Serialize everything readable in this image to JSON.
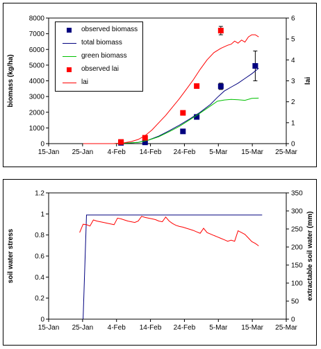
{
  "chart_data": [
    {
      "type": "scatter+line",
      "xlabel": "",
      "ylabel": "biomass (kg/ha)",
      "y2label": "lai",
      "x_ticks": [
        "15-Jan",
        "25-Jan",
        "4-Feb",
        "14-Feb",
        "24-Feb",
        "5-Mar",
        "15-Mar",
        "25-Mar"
      ],
      "xlim_days": [
        0,
        69
      ],
      "ylim": [
        0,
        8000
      ],
      "y_ticks": [
        "0",
        "1000",
        "2000",
        "3000",
        "4000",
        "5000",
        "6000",
        "7000",
        "8000"
      ],
      "y2lim": [
        0,
        6
      ],
      "y2_ticks": [
        "0",
        "1",
        "2",
        "3",
        "4",
        "5",
        "6"
      ],
      "legend": {
        "position": "top-left",
        "entries": [
          "observed biomass",
          "total biomass",
          "green biomass",
          "observed lai",
          "lai"
        ]
      },
      "series": [
        {
          "name": "observed biomass",
          "kind": "marker",
          "axis": "left",
          "color": "#00007f",
          "points": [
            {
              "x": 21,
              "y": 50
            },
            {
              "x": 28,
              "y": 80
            },
            {
              "x": 39,
              "y": 780
            },
            {
              "x": 43,
              "y": 1700
            },
            {
              "x": 50,
              "y": 3650,
              "err": 200
            },
            {
              "x": 60,
              "y": 4950,
              "err": 950
            }
          ]
        },
        {
          "name": "total biomass",
          "kind": "line",
          "axis": "left",
          "color": "#00007f",
          "points": [
            [
              10,
              0
            ],
            [
              19,
              0
            ],
            [
              23,
              40
            ],
            [
              26,
              80
            ],
            [
              29,
              230
            ],
            [
              32,
              480
            ],
            [
              35,
              820
            ],
            [
              38,
              1180
            ],
            [
              41,
              1580
            ],
            [
              44,
              2000
            ],
            [
              47,
              2500
            ],
            [
              49,
              2950
            ],
            [
              51,
              3350
            ],
            [
              53,
              3600
            ],
            [
              55,
              3850
            ],
            [
              57,
              4150
            ],
            [
              59,
              4450
            ],
            [
              61,
              4800
            ]
          ]
        },
        {
          "name": "green biomass",
          "kind": "line",
          "axis": "left",
          "color": "#00c000",
          "points": [
            [
              10,
              0
            ],
            [
              19,
              0
            ],
            [
              23,
              40
            ],
            [
              26,
              80
            ],
            [
              29,
              220
            ],
            [
              32,
              440
            ],
            [
              35,
              760
            ],
            [
              38,
              1100
            ],
            [
              41,
              1520
            ],
            [
              44,
              1950
            ],
            [
              47,
              2400
            ],
            [
              49,
              2700
            ],
            [
              51,
              2780
            ],
            [
              53,
              2820
            ],
            [
              55,
              2800
            ],
            [
              57,
              2760
            ],
            [
              59,
              2880
            ],
            [
              61,
              2900
            ]
          ]
        },
        {
          "name": "observed lai",
          "kind": "marker",
          "axis": "right",
          "color": "#ff0000",
          "points": [
            {
              "x": 21,
              "y": 0.08
            },
            {
              "x": 28,
              "y": 0.28
            },
            {
              "x": 39,
              "y": 1.47
            },
            {
              "x": 43,
              "y": 2.75
            },
            {
              "x": 50,
              "y": 5.4,
              "err": 0.2
            }
          ]
        },
        {
          "name": "lai",
          "kind": "line",
          "axis": "right",
          "color": "#ff0000",
          "points": [
            [
              10,
              0
            ],
            [
              19,
              0
            ],
            [
              22,
              0.04
            ],
            [
              24,
              0.1
            ],
            [
              26,
              0.2
            ],
            [
              28,
              0.38
            ],
            [
              30,
              0.65
            ],
            [
              32,
              1.0
            ],
            [
              34,
              1.35
            ],
            [
              36,
              1.75
            ],
            [
              38,
              2.15
            ],
            [
              40,
              2.6
            ],
            [
              42,
              3.05
            ],
            [
              44,
              3.55
            ],
            [
              46,
              4.0
            ],
            [
              48,
              4.35
            ],
            [
              50,
              4.55
            ],
            [
              52,
              4.7
            ],
            [
              53,
              4.75
            ],
            [
              54,
              4.9
            ],
            [
              55,
              4.8
            ],
            [
              56,
              4.95
            ],
            [
              57,
              4.85
            ],
            [
              58,
              5.1
            ],
            [
              59,
              5.2
            ],
            [
              60,
              5.2
            ],
            [
              61,
              5.1
            ]
          ]
        }
      ]
    },
    {
      "type": "line",
      "xlabel": "",
      "ylabel": "soil water stress",
      "y2label": "extractable soil water (mm)",
      "x_ticks": [
        "15-Jan",
        "25-Jan",
        "4-Feb",
        "14-Feb",
        "24-Feb",
        "5-Mar",
        "15-Mar",
        "25-Mar"
      ],
      "xlim_days": [
        0,
        69
      ],
      "ylim": [
        0,
        1.2
      ],
      "y_ticks": [
        "0",
        "0.2",
        "0.4",
        "0.6",
        "0.8",
        "1",
        "1.2"
      ],
      "y2lim": [
        0,
        350
      ],
      "y2_ticks": [
        "0",
        "50",
        "100",
        "150",
        "200",
        "250",
        "300",
        "350"
      ],
      "series": [
        {
          "name": "",
          "kind": "line",
          "axis": "left",
          "color": "#00007f",
          "points": [
            [
              10,
              0
            ],
            [
              11,
              0.99
            ],
            [
              12,
              0.99
            ],
            [
              62,
              0.99
            ]
          ]
        },
        {
          "name": "",
          "kind": "line",
          "axis": "right",
          "color": "#ff0000",
          "points": [
            [
              9,
              240
            ],
            [
              10,
              263
            ],
            [
              11,
              262
            ],
            [
              12,
              258
            ],
            [
              13,
              275
            ],
            [
              14,
              272
            ],
            [
              15,
              270
            ],
            [
              16,
              268
            ],
            [
              17,
              266
            ],
            [
              18,
              264
            ],
            [
              19,
              262
            ],
            [
              20,
              280
            ],
            [
              21,
              278
            ],
            [
              22,
              275
            ],
            [
              23,
              272
            ],
            [
              24,
              270
            ],
            [
              25,
              268
            ],
            [
              26,
              272
            ],
            [
              27,
              285
            ],
            [
              28,
              282
            ],
            [
              29,
              280
            ],
            [
              30,
              278
            ],
            [
              31,
              276
            ],
            [
              32,
              272
            ],
            [
              33,
              270
            ],
            [
              34,
              283
            ],
            [
              35,
              272
            ],
            [
              36,
              265
            ],
            [
              37,
              260
            ],
            [
              38,
              257
            ],
            [
              39,
              255
            ],
            [
              40,
              252
            ],
            [
              41,
              249
            ],
            [
              42,
              246
            ],
            [
              43,
              242
            ],
            [
              44,
              238
            ],
            [
              45,
              252
            ],
            [
              46,
              240
            ],
            [
              47,
              236
            ],
            [
              48,
              232
            ],
            [
              49,
              228
            ],
            [
              50,
              224
            ],
            [
              51,
              220
            ],
            [
              52,
              216
            ],
            [
              53,
              219
            ],
            [
              54,
              216
            ],
            [
              55,
              245
            ],
            [
              56,
              240
            ],
            [
              57,
              235
            ],
            [
              58,
              225
            ],
            [
              59,
              215
            ],
            [
              60,
              210
            ],
            [
              61,
              203
            ]
          ]
        }
      ]
    }
  ]
}
